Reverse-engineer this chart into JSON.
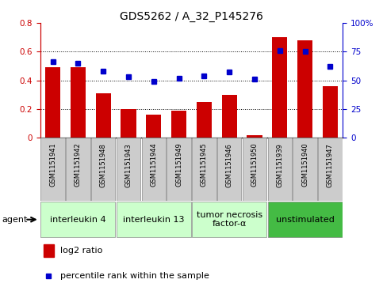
{
  "title": "GDS5262 / A_32_P145276",
  "samples": [
    "GSM1151941",
    "GSM1151942",
    "GSM1151948",
    "GSM1151943",
    "GSM1151944",
    "GSM1151949",
    "GSM1151945",
    "GSM1151946",
    "GSM1151950",
    "GSM1151939",
    "GSM1151940",
    "GSM1151947"
  ],
  "log2_ratio": [
    0.49,
    0.49,
    0.31,
    0.2,
    0.16,
    0.19,
    0.25,
    0.3,
    0.02,
    0.7,
    0.68,
    0.36
  ],
  "percentile_rank": [
    66,
    65,
    58,
    53,
    49,
    52,
    54,
    57,
    51,
    76,
    75,
    62
  ],
  "bar_color": "#cc0000",
  "point_color": "#0000cc",
  "ylim_left": [
    0,
    0.8
  ],
  "ylim_right": [
    0,
    100
  ],
  "yticks_left": [
    0,
    0.2,
    0.4,
    0.6,
    0.8
  ],
  "ytick_labels_left": [
    "0",
    "0.2",
    "0.4",
    "0.6",
    "0.8"
  ],
  "yticks_right": [
    0,
    25,
    50,
    75,
    100
  ],
  "ytick_labels_right": [
    "0",
    "25",
    "50",
    "75",
    "100%"
  ],
  "groups": [
    {
      "label": "interleukin 4",
      "start": 0,
      "end": 3,
      "color": "#ccffcc",
      "text_color": "#006600"
    },
    {
      "label": "interleukin 13",
      "start": 3,
      "end": 6,
      "color": "#ccffcc",
      "text_color": "#006600"
    },
    {
      "label": "tumor necrosis\nfactor-α",
      "start": 6,
      "end": 9,
      "color": "#ccffcc",
      "text_color": "#006600"
    },
    {
      "label": "unstimulated",
      "start": 9,
      "end": 12,
      "color": "#44bb44",
      "text_color": "#006600"
    }
  ],
  "sample_box_color": "#cccccc",
  "agent_label": "agent",
  "legend_bar_label": "log2 ratio",
  "legend_point_label": "percentile rank within the sample",
  "background_color": "#ffffff",
  "left_color": "#cc0000",
  "right_color": "#0000cc",
  "title_fontsize": 10,
  "tick_fontsize": 7.5,
  "sample_fontsize": 6,
  "group_fontsize": 8,
  "legend_fontsize": 8
}
